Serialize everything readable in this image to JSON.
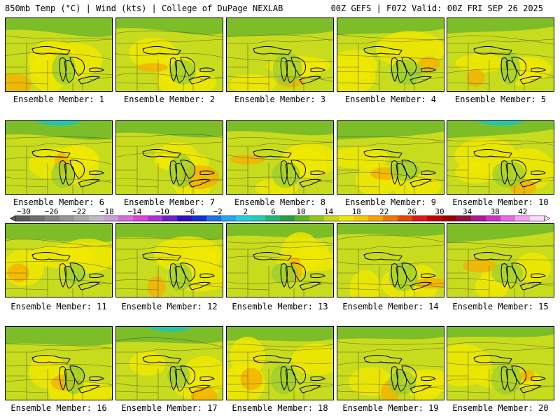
{
  "header": {
    "left": "850mb Temp (°C) | Wind (kts) | College of DuPage NEXLAB",
    "right": "00Z GEFS | F072 Valid: 00Z FRI SEP 26 2025"
  },
  "member_label_prefix": "Ensemble Member: ",
  "members": [
    1,
    2,
    3,
    4,
    5,
    6,
    7,
    8,
    9,
    10,
    11,
    12,
    13,
    14,
    15,
    16,
    17,
    18,
    19,
    20
  ],
  "colorbar": {
    "ticks": [
      "−30",
      "−26",
      "−22",
      "−18",
      "−14",
      "−10",
      "−6",
      "−2",
      "2",
      "6",
      "10",
      "14",
      "18",
      "22",
      "26",
      "30",
      "34",
      "38",
      "42"
    ],
    "colors": [
      "#5a5a5a",
      "#6e6e6e",
      "#828282",
      "#969696",
      "#aaaaaa",
      "#bebebe",
      "#c8a0d8",
      "#d070d8",
      "#e040e0",
      "#b030d8",
      "#7020c8",
      "#3010c0",
      "#1030d8",
      "#2070e8",
      "#20a8f0",
      "#20d0e0",
      "#20d0b0",
      "#20b870",
      "#28a040",
      "#58b820",
      "#90c818",
      "#c8d818",
      "#f0e800",
      "#f8c800",
      "#f8a000",
      "#f07800",
      "#e84800",
      "#e01818",
      "#c80000",
      "#a00000",
      "#901040",
      "#b01890",
      "#d030c8",
      "#e868e8",
      "#f8a0f8",
      "#fcd8fc"
    ]
  },
  "palette": {
    "green_light": "#9acd32",
    "green": "#7cbd28",
    "yellow_green": "#c8dc1e",
    "yellow": "#f0e800",
    "orange": "#f4b000",
    "teal": "#20c8a8"
  }
}
